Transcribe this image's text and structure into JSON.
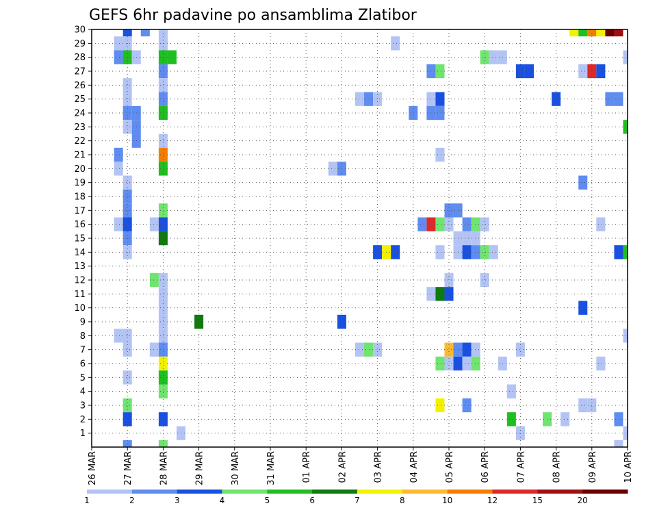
{
  "chart_data": {
    "type": "heatmap",
    "title": "GEFS 6hr padavine po ansamblima Zlatibor",
    "x_ticks": [
      "26 MAR",
      "27 MAR",
      "28 MAR",
      "29 MAR",
      "30 MAR",
      "31 MAR",
      "01 APR",
      "02 APR",
      "03 APR",
      "04 APR",
      "05 APR",
      "06 APR",
      "07 APR",
      "08 APR",
      "09 APR",
      "10 APR"
    ],
    "y_ticks": [
      1,
      2,
      3,
      4,
      5,
      6,
      7,
      8,
      9,
      10,
      11,
      12,
      13,
      14,
      15,
      16,
      17,
      18,
      19,
      20,
      21,
      22,
      23,
      24,
      25,
      26,
      27,
      28,
      29,
      30
    ],
    "ylim": [
      0,
      30
    ],
    "grid": true,
    "colorbar": {
      "labels": [
        "1",
        "2",
        "3",
        "4",
        "5",
        "6",
        "7",
        "8",
        "10",
        "12",
        "15",
        "20"
      ],
      "colors": [
        "#b3c4f4",
        "#5f8cf0",
        "#1a50e0",
        "#6fe46f",
        "#20be20",
        "#0f7a0f",
        "#f2f200",
        "#fcba30",
        "#f57d00",
        "#e02828",
        "#a01010",
        "#6b0000"
      ]
    },
    "cells": [
      {
        "x": "27 MAR",
        "xo": 0,
        "y": 30,
        "v": 3
      },
      {
        "x": "28 MAR",
        "xo": -0.5,
        "y": 30,
        "v": 2
      },
      {
        "x": "28 MAR",
        "xo": 0,
        "y": 30,
        "v": 1
      },
      {
        "x": "09 APR",
        "xo": -0.5,
        "y": 30,
        "v": 7
      },
      {
        "x": "09 APR",
        "xo": -0.25,
        "y": 30,
        "v": 5
      },
      {
        "x": "09 APR",
        "xo": 0,
        "y": 30,
        "v": 10
      },
      {
        "x": "09 APR",
        "xo": 0.25,
        "y": 30,
        "v": 7
      },
      {
        "x": "09 APR",
        "xo": 0.5,
        "y": 30,
        "v": 20
      },
      {
        "x": "09 APR",
        "xo": 0.75,
        "y": 30,
        "v": 15
      },
      {
        "x": "27 MAR",
        "xo": -0.25,
        "y": 29,
        "v": 1
      },
      {
        "x": "27 MAR",
        "xo": 0,
        "y": 29,
        "v": 1
      },
      {
        "x": "28 MAR",
        "xo": 0,
        "y": 29,
        "v": 1
      },
      {
        "x": "04 APR",
        "xo": -0.5,
        "y": 29,
        "v": 1
      },
      {
        "x": "27 MAR",
        "xo": -0.25,
        "y": 28,
        "v": 2
      },
      {
        "x": "27 MAR",
        "xo": 0,
        "y": 28,
        "v": 5
      },
      {
        "x": "27 MAR",
        "xo": 0.25,
        "y": 28,
        "v": 1
      },
      {
        "x": "28 MAR",
        "xo": 0,
        "y": 28,
        "v": 5
      },
      {
        "x": "28 MAR",
        "xo": 0.25,
        "y": 28,
        "v": 5
      },
      {
        "x": "06 APR",
        "xo": 0,
        "y": 28,
        "v": 4
      },
      {
        "x": "06 APR",
        "xo": 0.25,
        "y": 28,
        "v": 1
      },
      {
        "x": "06 APR",
        "xo": 0.5,
        "y": 28,
        "v": 1
      },
      {
        "x": "10 APR",
        "xo": 0,
        "y": 28,
        "v": 1
      },
      {
        "x": "28 MAR",
        "xo": 0,
        "y": 27,
        "v": 2
      },
      {
        "x": "05 APR",
        "xo": -0.5,
        "y": 27,
        "v": 2
      },
      {
        "x": "05 APR",
        "xo": -0.25,
        "y": 27,
        "v": 4
      },
      {
        "x": "07 APR",
        "xo": 0,
        "y": 27,
        "v": 3
      },
      {
        "x": "07 APR",
        "xo": 0.25,
        "y": 27,
        "v": 3
      },
      {
        "x": "09 APR",
        "xo": -0.25,
        "y": 27,
        "v": 1
      },
      {
        "x": "09 APR",
        "xo": 0,
        "y": 27,
        "v": 12
      },
      {
        "x": "09 APR",
        "xo": 0.25,
        "y": 27,
        "v": 3
      },
      {
        "x": "27 MAR",
        "xo": 0,
        "y": 26,
        "v": 1
      },
      {
        "x": "28 MAR",
        "xo": 0,
        "y": 26,
        "v": 1
      },
      {
        "x": "27 MAR",
        "xo": 0,
        "y": 25,
        "v": 1
      },
      {
        "x": "28 MAR",
        "xo": 0,
        "y": 25,
        "v": 2
      },
      {
        "x": "03 APR",
        "xo": -0.5,
        "y": 25,
        "v": 1
      },
      {
        "x": "03 APR",
        "xo": -0.25,
        "y": 25,
        "v": 2
      },
      {
        "x": "03 APR",
        "xo": 0,
        "y": 25,
        "v": 1
      },
      {
        "x": "05 APR",
        "xo": -0.5,
        "y": 25,
        "v": 1
      },
      {
        "x": "05 APR",
        "xo": -0.25,
        "y": 25,
        "v": 3
      },
      {
        "x": "08 APR",
        "xo": 0,
        "y": 25,
        "v": 3
      },
      {
        "x": "10 APR",
        "xo": -0.5,
        "y": 25,
        "v": 2
      },
      {
        "x": "10 APR",
        "xo": -0.25,
        "y": 25,
        "v": 2
      },
      {
        "x": "27 MAR",
        "xo": 0,
        "y": 24,
        "v": 2
      },
      {
        "x": "27 MAR",
        "xo": 0.25,
        "y": 24,
        "v": 2
      },
      {
        "x": "28 MAR",
        "xo": 0,
        "y": 24,
        "v": 5
      },
      {
        "x": "04 APR",
        "xo": 0,
        "y": 24,
        "v": 2
      },
      {
        "x": "05 APR",
        "xo": -0.5,
        "y": 24,
        "v": 2
      },
      {
        "x": "05 APR",
        "xo": -0.25,
        "y": 24,
        "v": 2
      },
      {
        "x": "27 MAR",
        "xo": 0,
        "y": 23,
        "v": 1
      },
      {
        "x": "27 MAR",
        "xo": 0.25,
        "y": 23,
        "v": 2
      },
      {
        "x": "10 APR",
        "xo": 0,
        "y": 23,
        "v": 5
      },
      {
        "x": "27 MAR",
        "xo": 0.25,
        "y": 22,
        "v": 2
      },
      {
        "x": "28 MAR",
        "xo": 0,
        "y": 22,
        "v": 1
      },
      {
        "x": "27 MAR",
        "xo": -0.25,
        "y": 21,
        "v": 2
      },
      {
        "x": "28 MAR",
        "xo": 0,
        "y": 21,
        "v": 10
      },
      {
        "x": "05 APR",
        "xo": -0.25,
        "y": 21,
        "v": 1
      },
      {
        "x": "27 MAR",
        "xo": -0.25,
        "y": 20,
        "v": 1
      },
      {
        "x": "28 MAR",
        "xo": 0,
        "y": 20,
        "v": 5
      },
      {
        "x": "02 APR",
        "xo": -0.25,
        "y": 20,
        "v": 1
      },
      {
        "x": "02 APR",
        "xo": 0,
        "y": 20,
        "v": 2
      },
      {
        "x": "27 MAR",
        "xo": 0,
        "y": 19,
        "v": 1
      },
      {
        "x": "08 APR",
        "xo": 0.75,
        "y": 19,
        "v": 2
      },
      {
        "x": "27 MAR",
        "xo": 0,
        "y": 18,
        "v": 2
      },
      {
        "x": "27 MAR",
        "xo": 0,
        "y": 17,
        "v": 2
      },
      {
        "x": "28 MAR",
        "xo": 0,
        "y": 17,
        "v": 4
      },
      {
        "x": "05 APR",
        "xo": 0,
        "y": 17,
        "v": 2
      },
      {
        "x": "05 APR",
        "xo": 0.25,
        "y": 17,
        "v": 2
      },
      {
        "x": "27 MAR",
        "xo": -0.25,
        "y": 16,
        "v": 1
      },
      {
        "x": "27 MAR",
        "xo": 0,
        "y": 16,
        "v": 3
      },
      {
        "x": "28 MAR",
        "xo": -0.25,
        "y": 16,
        "v": 1
      },
      {
        "x": "28 MAR",
        "xo": 0,
        "y": 16,
        "v": 3
      },
      {
        "x": "05 APR",
        "xo": -0.75,
        "y": 16,
        "v": 2
      },
      {
        "x": "05 APR",
        "xo": -0.5,
        "y": 16,
        "v": 12
      },
      {
        "x": "05 APR",
        "xo": -0.25,
        "y": 16,
        "v": 4
      },
      {
        "x": "05 APR",
        "xo": 0,
        "y": 16,
        "v": 1
      },
      {
        "x": "05 APR",
        "xo": 0.5,
        "y": 16,
        "v": 2
      },
      {
        "x": "05 APR",
        "xo": 0.75,
        "y": 16,
        "v": 4
      },
      {
        "x": "06 APR",
        "xo": 0,
        "y": 16,
        "v": 1
      },
      {
        "x": "09 APR",
        "xo": 0.25,
        "y": 16,
        "v": 1
      },
      {
        "x": "27 MAR",
        "xo": 0,
        "y": 15,
        "v": 2
      },
      {
        "x": "28 MAR",
        "xo": 0,
        "y": 15,
        "v": 6
      },
      {
        "x": "05 APR",
        "xo": 0.25,
        "y": 15,
        "v": 1
      },
      {
        "x": "05 APR",
        "xo": 0.5,
        "y": 15,
        "v": 1
      },
      {
        "x": "05 APR",
        "xo": 0.75,
        "y": 15,
        "v": 1
      },
      {
        "x": "27 MAR",
        "xo": 0,
        "y": 14,
        "v": 1
      },
      {
        "x": "03 APR",
        "xo": 0,
        "y": 14,
        "v": 3
      },
      {
        "x": "03 APR",
        "xo": 0.25,
        "y": 14,
        "v": 7
      },
      {
        "x": "03 APR",
        "xo": 0.5,
        "y": 14,
        "v": 3
      },
      {
        "x": "05 APR",
        "xo": -0.25,
        "y": 14,
        "v": 1
      },
      {
        "x": "05 APR",
        "xo": 0.25,
        "y": 14,
        "v": 1
      },
      {
        "x": "05 APR",
        "xo": 0.5,
        "y": 14,
        "v": 3
      },
      {
        "x": "05 APR",
        "xo": 0.75,
        "y": 14,
        "v": 2
      },
      {
        "x": "06 APR",
        "xo": 0,
        "y": 14,
        "v": 4
      },
      {
        "x": "06 APR",
        "xo": 0.25,
        "y": 14,
        "v": 1
      },
      {
        "x": "10 APR",
        "xo": -0.25,
        "y": 14,
        "v": 3
      },
      {
        "x": "10 APR",
        "xo": 0,
        "y": 14,
        "v": 5
      },
      {
        "x": "28 MAR",
        "xo": -0.25,
        "y": 12,
        "v": 4
      },
      {
        "x": "28 MAR",
        "xo": 0,
        "y": 12,
        "v": 1
      },
      {
        "x": "05 APR",
        "xo": 0,
        "y": 12,
        "v": 1
      },
      {
        "x": "06 APR",
        "xo": 0,
        "y": 12,
        "v": 1
      },
      {
        "x": "28 MAR",
        "xo": 0,
        "y": 11,
        "v": 1
      },
      {
        "x": "05 APR",
        "xo": -0.5,
        "y": 11,
        "v": 1
      },
      {
        "x": "05 APR",
        "xo": -0.25,
        "y": 11,
        "v": 6
      },
      {
        "x": "05 APR",
        "xo": 0,
        "y": 11,
        "v": 3
      },
      {
        "x": "28 MAR",
        "xo": 0,
        "y": 10,
        "v": 1
      },
      {
        "x": "09 APR",
        "xo": -0.25,
        "y": 10,
        "v": 3
      },
      {
        "x": "28 MAR",
        "xo": 0,
        "y": 9,
        "v": 1
      },
      {
        "x": "29 MAR",
        "xo": 0,
        "y": 9,
        "v": 6
      },
      {
        "x": "02 APR",
        "xo": 0,
        "y": 9,
        "v": 3
      },
      {
        "x": "27 MAR",
        "xo": -0.25,
        "y": 8,
        "v": 1
      },
      {
        "x": "27 MAR",
        "xo": 0,
        "y": 8,
        "v": 1
      },
      {
        "x": "28 MAR",
        "xo": 0,
        "y": 8,
        "v": 1
      },
      {
        "x": "10 APR",
        "xo": 0,
        "y": 8,
        "v": 1
      },
      {
        "x": "27 MAR",
        "xo": 0,
        "y": 7,
        "v": 1
      },
      {
        "x": "28 MAR",
        "xo": -0.25,
        "y": 7,
        "v": 1
      },
      {
        "x": "28 MAR",
        "xo": 0,
        "y": 7,
        "v": 2
      },
      {
        "x": "03 APR",
        "xo": -0.5,
        "y": 7,
        "v": 1
      },
      {
        "x": "03 APR",
        "xo": -0.25,
        "y": 7,
        "v": 4
      },
      {
        "x": "03 APR",
        "xo": 0,
        "y": 7,
        "v": 1
      },
      {
        "x": "05 APR",
        "xo": 0,
        "y": 7,
        "v": 8
      },
      {
        "x": "05 APR",
        "xo": 0.25,
        "y": 7,
        "v": 2
      },
      {
        "x": "05 APR",
        "xo": 0.5,
        "y": 7,
        "v": 3
      },
      {
        "x": "05 APR",
        "xo": 0.75,
        "y": 7,
        "v": 1
      },
      {
        "x": "07 APR",
        "xo": 0,
        "y": 7,
        "v": 1
      },
      {
        "x": "28 MAR",
        "xo": 0,
        "y": 6,
        "v": 7
      },
      {
        "x": "05 APR",
        "xo": -0.25,
        "y": 6,
        "v": 4
      },
      {
        "x": "05 APR",
        "xo": 0,
        "y": 6,
        "v": 1
      },
      {
        "x": "05 APR",
        "xo": 0.25,
        "y": 6,
        "v": 3
      },
      {
        "x": "05 APR",
        "xo": 0.5,
        "y": 6,
        "v": 1
      },
      {
        "x": "05 APR",
        "xo": 0.75,
        "y": 6,
        "v": 4
      },
      {
        "x": "06 APR",
        "xo": 0.5,
        "y": 6,
        "v": 1
      },
      {
        "x": "09 APR",
        "xo": 0.25,
        "y": 6,
        "v": 1
      },
      {
        "x": "27 MAR",
        "xo": 0,
        "y": 5,
        "v": 1
      },
      {
        "x": "28 MAR",
        "xo": 0,
        "y": 5,
        "v": 5
      },
      {
        "x": "28 MAR",
        "xo": 0,
        "y": 4,
        "v": 4
      },
      {
        "x": "06 APR",
        "xo": 0.75,
        "y": 4,
        "v": 1
      },
      {
        "x": "07 APR",
        "xo": -0.25,
        "y": 4,
        "v": 1
      },
      {
        "x": "27 MAR",
        "xo": 0,
        "y": 3,
        "v": 4
      },
      {
        "x": "05 APR",
        "xo": -0.25,
        "y": 3,
        "v": 7
      },
      {
        "x": "05 APR",
        "xo": 0.5,
        "y": 3,
        "v": 2
      },
      {
        "x": "09 APR",
        "xo": -0.25,
        "y": 3,
        "v": 1
      },
      {
        "x": "09 APR",
        "xo": 0,
        "y": 3,
        "v": 1
      },
      {
        "x": "27 MAR",
        "xo": 0,
        "y": 2,
        "v": 3
      },
      {
        "x": "28 MAR",
        "xo": 0,
        "y": 2,
        "v": 3
      },
      {
        "x": "06 APR",
        "xo": 0.75,
        "y": 2,
        "v": 5
      },
      {
        "x": "07 APR",
        "xo": 0.75,
        "y": 2,
        "v": 4
      },
      {
        "x": "08 APR",
        "xo": 0.25,
        "y": 2,
        "v": 1
      },
      {
        "x": "10 APR",
        "xo": -0.25,
        "y": 2,
        "v": 2
      },
      {
        "x": "28 MAR",
        "xo": 0.5,
        "y": 1,
        "v": 1
      },
      {
        "x": "07 APR",
        "xo": 0,
        "y": 1,
        "v": 1
      },
      {
        "x": "10 APR",
        "xo": 0,
        "y": 1,
        "v": 1
      },
      {
        "x": "27 MAR",
        "xo": 0,
        "y": 0,
        "v": 2
      },
      {
        "x": "28 MAR",
        "xo": 0,
        "y": 0,
        "v": 4
      },
      {
        "x": "10 APR",
        "xo": -0.25,
        "y": 0,
        "v": 1
      }
    ]
  }
}
